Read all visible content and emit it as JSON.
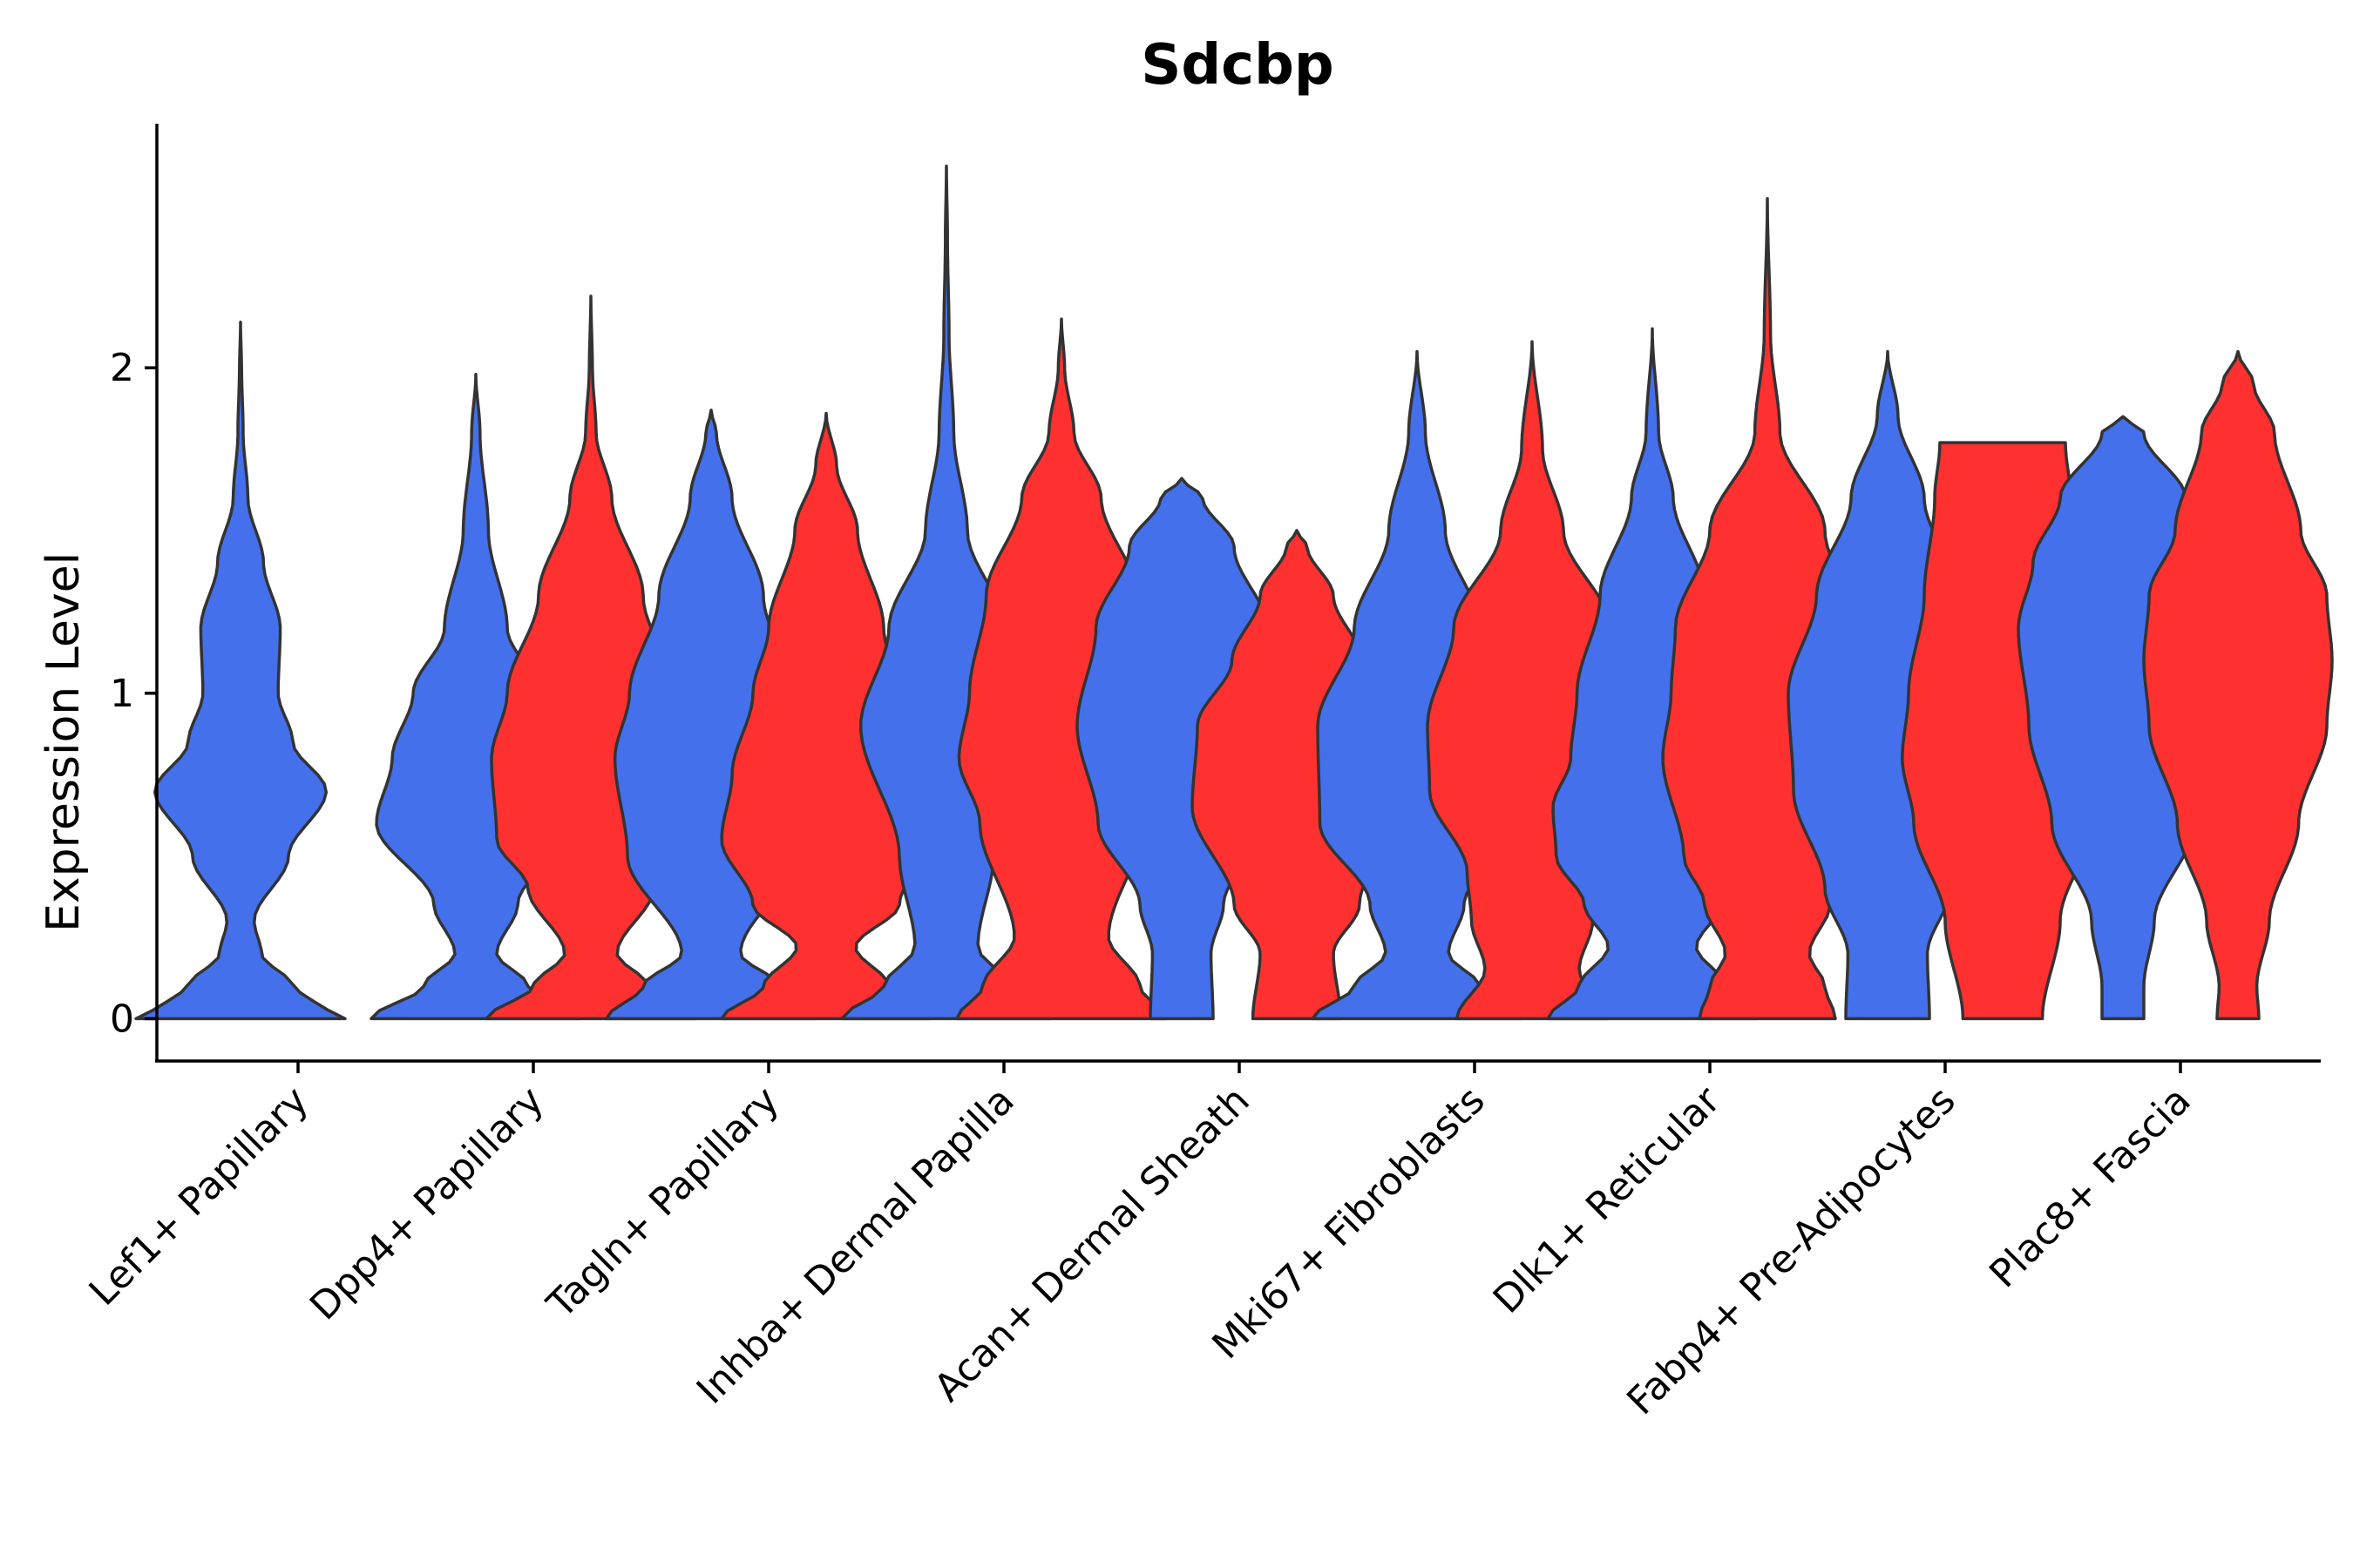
{
  "chart_data": {
    "type": "violin",
    "title": "Sdcbp",
    "xlabel": "",
    "ylabel": "Expression Level",
    "ylim": [
      -0.13,
      2.75
    ],
    "yticks": [
      0,
      1,
      2
    ],
    "grid": false,
    "legend": "none",
    "colors": {
      "group_a": "#4470EC",
      "group_b": "#FF3030",
      "outline": "#333333"
    },
    "categories": [
      "Lef1+ Papillary",
      "Dpp4+ Papillary",
      "Tagln+ Papillary",
      "Inhba+ Dermal Papilla",
      "Acan+ Dermal Sheath",
      "Mki67+ Fibroblasts",
      "Dlk1+ Reticular",
      "Fabp4+ Pre-Adipocytes",
      "Plac8+ Fascia"
    ],
    "violins": [
      {
        "category": "Lef1+ Papillary",
        "group": "a",
        "min": 0,
        "max": 2.14,
        "profile": [
          [
            0,
            1.0
          ],
          [
            0.05,
            0.7
          ],
          [
            0.1,
            0.5
          ],
          [
            0.2,
            0.2
          ],
          [
            0.3,
            0.13
          ],
          [
            0.5,
            0.46
          ],
          [
            0.7,
            0.82
          ],
          [
            0.85,
            0.5
          ],
          [
            1.0,
            0.36
          ],
          [
            1.2,
            0.38
          ],
          [
            1.4,
            0.22
          ],
          [
            1.6,
            0.07
          ],
          [
            1.8,
            0.025
          ],
          [
            2.0,
            0.01
          ],
          [
            2.14,
            0.0
          ]
        ]
      },
      {
        "category": "Dpp4+ Papillary",
        "group": "a",
        "min": 0,
        "max": 1.98,
        "profile": [
          [
            0,
            1.0
          ],
          [
            0.1,
            0.5
          ],
          [
            0.2,
            0.2
          ],
          [
            0.35,
            0.4
          ],
          [
            0.6,
            0.95
          ],
          [
            0.8,
            0.8
          ],
          [
            1.0,
            0.6
          ],
          [
            1.2,
            0.3
          ],
          [
            1.5,
            0.12
          ],
          [
            1.8,
            0.04
          ],
          [
            1.98,
            0.0
          ]
        ]
      },
      {
        "category": "Dpp4+ Papillary",
        "group": "b",
        "min": 0,
        "max": 2.22,
        "profile": [
          [
            0,
            1.0
          ],
          [
            0.1,
            0.55
          ],
          [
            0.2,
            0.25
          ],
          [
            0.4,
            0.6
          ],
          [
            0.55,
            0.9
          ],
          [
            0.8,
            0.95
          ],
          [
            1.0,
            0.8
          ],
          [
            1.3,
            0.5
          ],
          [
            1.6,
            0.2
          ],
          [
            1.8,
            0.05
          ],
          [
            2.0,
            0.015
          ],
          [
            2.22,
            0.0
          ]
        ]
      },
      {
        "category": "Tagln+ Papillary",
        "group": "a",
        "min": 0,
        "max": 1.87,
        "profile": [
          [
            0,
            1.0
          ],
          [
            0.1,
            0.65
          ],
          [
            0.2,
            0.28
          ],
          [
            0.5,
            0.8
          ],
          [
            0.8,
            0.92
          ],
          [
            1.0,
            0.78
          ],
          [
            1.3,
            0.5
          ],
          [
            1.6,
            0.2
          ],
          [
            1.8,
            0.05
          ],
          [
            1.87,
            0.0
          ]
        ]
      },
      {
        "category": "Tagln+ Papillary",
        "group": "b",
        "min": 0,
        "max": 1.86,
        "profile": [
          [
            0,
            1.0
          ],
          [
            0.1,
            0.6
          ],
          [
            0.22,
            0.28
          ],
          [
            0.35,
            0.7
          ],
          [
            0.55,
            1.0
          ],
          [
            0.75,
            0.9
          ],
          [
            1.0,
            0.7
          ],
          [
            1.2,
            0.55
          ],
          [
            1.5,
            0.3
          ],
          [
            1.7,
            0.1
          ],
          [
            1.86,
            0.0
          ]
        ]
      },
      {
        "category": "Inhba+ Dermal Papilla",
        "group": "a",
        "min": 0,
        "max": 2.62,
        "profile": [
          [
            0,
            1.0
          ],
          [
            0.1,
            0.6
          ],
          [
            0.22,
            0.3
          ],
          [
            0.5,
            0.45
          ],
          [
            0.9,
            0.82
          ],
          [
            1.2,
            0.55
          ],
          [
            1.5,
            0.2
          ],
          [
            1.8,
            0.07
          ],
          [
            2.1,
            0.025
          ],
          [
            2.4,
            0.01
          ],
          [
            2.62,
            0.0
          ]
        ]
      },
      {
        "category": "Inhba+ Dermal Papilla",
        "group": "b",
        "min": 0,
        "max": 2.15,
        "profile": [
          [
            0,
            1.0
          ],
          [
            0.1,
            0.75
          ],
          [
            0.25,
            0.45
          ],
          [
            0.6,
            0.78
          ],
          [
            0.8,
            0.98
          ],
          [
            1.0,
            0.88
          ],
          [
            1.3,
            0.72
          ],
          [
            1.6,
            0.38
          ],
          [
            1.8,
            0.12
          ],
          [
            2.0,
            0.03
          ],
          [
            2.15,
            0.0
          ]
        ]
      },
      {
        "category": "Acan+ Dermal Sheath",
        "group": "a",
        "min": 0,
        "max": 1.66,
        "profile": [
          [
            0,
            0.3
          ],
          [
            0.2,
            0.28
          ],
          [
            0.35,
            0.4
          ],
          [
            0.6,
            0.8
          ],
          [
            0.9,
            1.0
          ],
          [
            1.2,
            0.82
          ],
          [
            1.45,
            0.5
          ],
          [
            1.6,
            0.2
          ],
          [
            1.66,
            0.0
          ]
        ]
      },
      {
        "category": "Acan+ Dermal Sheath",
        "group": "b",
        "min": 0,
        "max": 1.5,
        "profile": [
          [
            0,
            0.42
          ],
          [
            0.2,
            0.35
          ],
          [
            0.35,
            0.6
          ],
          [
            0.65,
            1.0
          ],
          [
            0.9,
            0.95
          ],
          [
            1.1,
            0.62
          ],
          [
            1.3,
            0.35
          ],
          [
            1.45,
            0.1
          ],
          [
            1.5,
            0.0
          ]
        ]
      },
      {
        "category": "Mki67+ Fibroblasts",
        "group": "a",
        "min": 0,
        "max": 2.05,
        "profile": [
          [
            0,
            1.0
          ],
          [
            0.1,
            0.6
          ],
          [
            0.2,
            0.3
          ],
          [
            0.35,
            0.45
          ],
          [
            0.6,
            0.93
          ],
          [
            0.9,
            0.95
          ],
          [
            1.2,
            0.6
          ],
          [
            1.5,
            0.27
          ],
          [
            1.8,
            0.08
          ],
          [
            2.05,
            0.0
          ]
        ]
      },
      {
        "category": "Mki67+ Fibroblasts",
        "group": "b",
        "min": 0,
        "max": 2.08,
        "profile": [
          [
            0,
            0.72
          ],
          [
            0.15,
            0.45
          ],
          [
            0.3,
            0.58
          ],
          [
            0.45,
            0.62
          ],
          [
            0.7,
            0.98
          ],
          [
            0.9,
            1.0
          ],
          [
            1.2,
            0.75
          ],
          [
            1.5,
            0.3
          ],
          [
            1.75,
            0.1
          ],
          [
            2.08,
            0.0
          ]
        ]
      },
      {
        "category": "Dlk1+ Reticular",
        "group": "a",
        "min": 0,
        "max": 2.12,
        "profile": [
          [
            0,
            1.0
          ],
          [
            0.1,
            0.7
          ],
          [
            0.22,
            0.42
          ],
          [
            0.35,
            0.65
          ],
          [
            0.5,
            0.92
          ],
          [
            0.65,
            0.95
          ],
          [
            0.8,
            0.78
          ],
          [
            1.0,
            0.72
          ],
          [
            1.3,
            0.5
          ],
          [
            1.6,
            0.2
          ],
          [
            1.8,
            0.06
          ],
          [
            2.12,
            0.0
          ]
        ]
      },
      {
        "category": "Dlk1+ Reticular",
        "group": "b",
        "min": 0,
        "max": 2.52,
        "profile": [
          [
            0,
            0.65
          ],
          [
            0.1,
            0.55
          ],
          [
            0.2,
            0.4
          ],
          [
            0.35,
            0.6
          ],
          [
            0.5,
            0.8
          ],
          [
            0.8,
            1.0
          ],
          [
            1.0,
            0.92
          ],
          [
            1.2,
            0.88
          ],
          [
            1.5,
            0.55
          ],
          [
            1.8,
            0.12
          ],
          [
            2.1,
            0.03
          ],
          [
            2.52,
            0.0
          ]
        ]
      },
      {
        "category": "Fabp4+ Pre-Adipocytes",
        "group": "a",
        "min": 0,
        "max": 2.05,
        "profile": [
          [
            0,
            0.4
          ],
          [
            0.2,
            0.38
          ],
          [
            0.4,
            0.6
          ],
          [
            0.7,
            0.9
          ],
          [
            1.0,
            0.95
          ],
          [
            1.3,
            0.68
          ],
          [
            1.6,
            0.35
          ],
          [
            1.85,
            0.1
          ],
          [
            2.05,
            0.0
          ]
        ]
      },
      {
        "category": "Fabp4+ Pre-Adipocytes",
        "group": "b",
        "min": 0,
        "max": 1.77,
        "profile": [
          [
            0,
            0.38
          ],
          [
            0.3,
            0.55
          ],
          [
            0.6,
            0.85
          ],
          [
            0.8,
            0.96
          ],
          [
            1.0,
            0.9
          ],
          [
            1.3,
            0.75
          ],
          [
            1.6,
            0.65
          ],
          [
            1.77,
            0.6
          ]
        ]
      },
      {
        "category": "Plac8+ Fascia",
        "group": "a",
        "min": 0,
        "max": 1.85,
        "profile": [
          [
            0,
            0.2
          ],
          [
            0.1,
            0.2
          ],
          [
            0.3,
            0.3
          ],
          [
            0.6,
            0.68
          ],
          [
            0.9,
            0.9
          ],
          [
            1.2,
            1.0
          ],
          [
            1.4,
            0.86
          ],
          [
            1.6,
            0.6
          ],
          [
            1.8,
            0.2
          ],
          [
            1.85,
            0.0
          ]
        ]
      },
      {
        "category": "Plac8+ Fascia",
        "group": "b",
        "min": 0,
        "max": 2.05,
        "profile": [
          [
            0,
            0.2
          ],
          [
            0.1,
            0.18
          ],
          [
            0.3,
            0.3
          ],
          [
            0.6,
            0.58
          ],
          [
            0.9,
            0.85
          ],
          [
            1.1,
            0.9
          ],
          [
            1.3,
            0.85
          ],
          [
            1.5,
            0.6
          ],
          [
            1.8,
            0.35
          ],
          [
            1.95,
            0.15
          ],
          [
            2.05,
            0.0
          ]
        ]
      }
    ]
  }
}
